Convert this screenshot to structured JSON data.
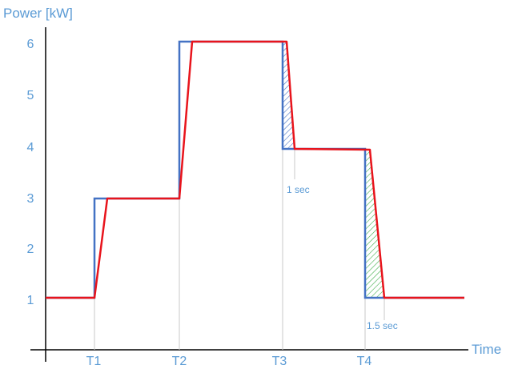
{
  "chart_data": {
    "type": "line",
    "ylabel": "Power [kW]",
    "xlabel": "Time",
    "y_ticks": [
      "1",
      "2",
      "3",
      "4",
      "5",
      "6"
    ],
    "x_ticks": [
      "T1",
      "T2",
      "T3",
      "T4"
    ],
    "ylim": [
      0.05,
      6.55
    ],
    "xlim": [
      -0.5,
      5.5
    ],
    "grid": false,
    "legend": "none",
    "series": [
      {
        "color": "#4472c4",
        "x": [
          -0.5,
          0.0,
          0.0,
          1.0,
          1.0,
          2.2,
          2.2,
          3.2,
          3.2,
          5.1
        ],
        "y": [
          1.05,
          1.05,
          3.0,
          3.0,
          6.05,
          6.05,
          3.95,
          3.95,
          1.05,
          1.05
        ]
      },
      {
        "color": "#e8141c",
        "x": [
          -0.5,
          0.0,
          0.15,
          1.0,
          1.15,
          2.25,
          2.35,
          3.05,
          3.25,
          5.1
        ],
        "y": [
          1.05,
          1.05,
          3.0,
          3.0,
          6.05,
          6.05,
          3.97,
          3.95,
          1.05,
          1.05
        ]
      }
    ],
    "annotations": [
      {
        "text": "1 sec",
        "x": 2.35,
        "y": 3.15
      },
      {
        "text": "1.5 sec",
        "x": 3.25,
        "y": 0.4
      }
    ],
    "shaded": [
      {
        "color": "#4472c4",
        "between": [
          2.2,
          2.35
        ]
      },
      {
        "color": "#3fae49",
        "between": [
          3.2,
          3.25
        ]
      }
    ],
    "colors": {
      "axis": "#000000",
      "tick_text": "#5b9bd5",
      "guide": "#c8c8c8"
    }
  }
}
